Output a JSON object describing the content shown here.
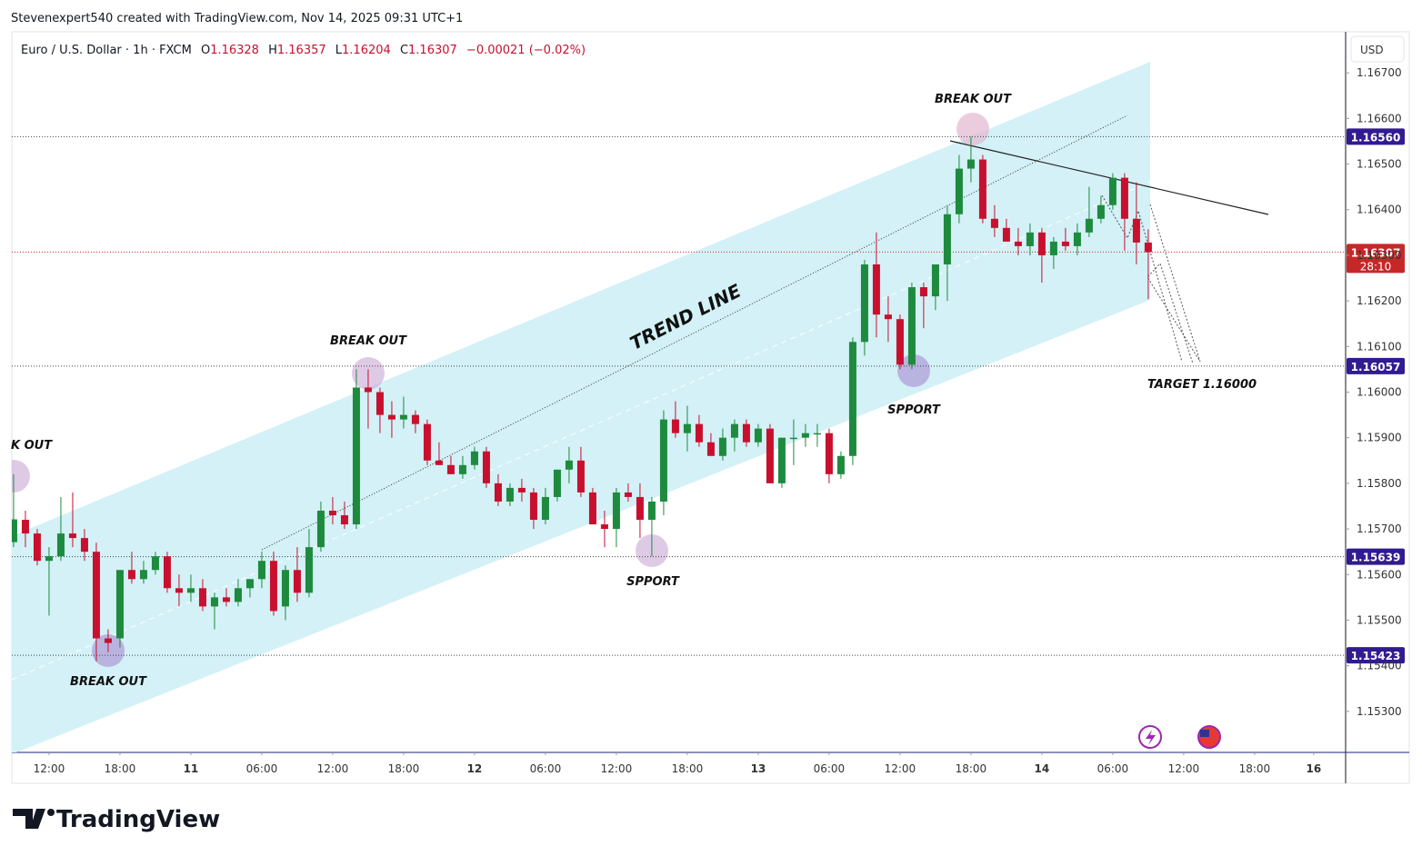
{
  "attribution": "Stevenexpert540 created with TradingView.com, Nov 14, 2025 09:31 UTC+1",
  "legend": {
    "symbol": "Euro / U.S. Dollar · 1h · FXCM",
    "ohlc": [
      {
        "key": "O",
        "value": "1.16328"
      },
      {
        "key": "H",
        "value": "1.16357"
      },
      {
        "key": "L",
        "value": "1.16204"
      },
      {
        "key": "C",
        "value": "1.16307"
      }
    ],
    "change": "−0.00021 (−0.02%)"
  },
  "currency": "USD",
  "logo": "TradingView",
  "chart_data": {
    "type": "candlestick",
    "up_color": "#1e8a3e",
    "down_color": "#c8102e",
    "open": [
      1.15671,
      1.1572,
      1.1569,
      1.1563,
      1.1564,
      1.1569,
      1.1568,
      1.1565,
      1.1546,
      1.1546,
      1.1561,
      1.1559,
      1.1561,
      1.1564,
      1.1557,
      1.1556,
      1.1557,
      1.1553,
      1.1555,
      1.1554,
      1.1557,
      1.1559,
      1.1563,
      1.1553,
      1.1561,
      1.1556,
      1.1566,
      1.1574,
      1.1573,
      1.1571,
      1.1601,
      1.16,
      1.1595,
      1.1594,
      1.1595,
      1.1593,
      1.1585,
      1.1584,
      1.1582,
      1.1584,
      1.1587,
      1.158,
      1.1576,
      1.1579,
      1.1578,
      1.1572,
      1.1577,
      1.1583,
      1.1585,
      1.1578,
      1.1571,
      1.157,
      1.1578,
      1.1577,
      1.1572,
      1.1576,
      1.1594,
      1.1591,
      1.1593,
      1.1589,
      1.1586,
      1.159,
      1.1593,
      1.1589,
      1.1592,
      1.158,
      1.159,
      1.159,
      1.1591,
      1.1591,
      1.1582,
      1.1586,
      1.1611,
      1.1628,
      1.1617,
      1.1616,
      1.1606,
      1.1623,
      1.1621,
      1.1628,
      1.1639,
      1.1649,
      1.1651,
      1.1638,
      1.1636,
      1.1633,
      1.1632,
      1.1635,
      1.163,
      1.1633,
      1.1632,
      1.1635,
      1.1638,
      1.1641,
      1.1647,
      1.1638,
      1.16328
    ],
    "high": [
      1.1582,
      1.1574,
      1.157,
      1.1566,
      1.1577,
      1.1578,
      1.157,
      1.1567,
      1.1548,
      1.1561,
      1.1565,
      1.1563,
      1.1565,
      1.1565,
      1.156,
      1.156,
      1.1559,
      1.1556,
      1.1557,
      1.1559,
      1.1559,
      1.1565,
      1.1565,
      1.1562,
      1.1566,
      1.157,
      1.1576,
      1.1577,
      1.1576,
      1.1605,
      1.1605,
      1.1601,
      1.1598,
      1.1599,
      1.1596,
      1.1594,
      1.1589,
      1.1586,
      1.1586,
      1.1588,
      1.1588,
      1.1582,
      1.158,
      1.1581,
      1.1579,
      1.1579,
      1.1583,
      1.1588,
      1.1588,
      1.1579,
      1.1574,
      1.1579,
      1.158,
      1.158,
      1.1577,
      1.1596,
      1.1598,
      1.1597,
      1.1595,
      1.1591,
      1.1592,
      1.1594,
      1.1594,
      1.1593,
      1.1593,
      1.159,
      1.1594,
      1.1593,
      1.1593,
      1.1592,
      1.1587,
      1.1612,
      1.1629,
      1.1635,
      1.1621,
      1.1617,
      1.1624,
      1.1624,
      1.1628,
      1.1641,
      1.1652,
      1.1656,
      1.1652,
      1.1641,
      1.1638,
      1.1636,
      1.1637,
      1.1636,
      1.1634,
      1.1636,
      1.1637,
      1.1645,
      1.1643,
      1.1648,
      1.1648,
      1.1646,
      1.16357
    ],
    "low": [
      1.1566,
      1.1566,
      1.1562,
      1.1551,
      1.1563,
      1.1566,
      1.1563,
      1.1541,
      1.1543,
      1.1544,
      1.1558,
      1.1558,
      1.156,
      1.1556,
      1.1553,
      1.1554,
      1.1552,
      1.1548,
      1.1553,
      1.1553,
      1.1555,
      1.1557,
      1.1551,
      1.155,
      1.1554,
      1.1555,
      1.1565,
      1.1571,
      1.157,
      1.157,
      1.1592,
      1.1591,
      1.159,
      1.1592,
      1.1591,
      1.1584,
      1.1584,
      1.1582,
      1.1581,
      1.1583,
      1.1579,
      1.1575,
      1.1575,
      1.1576,
      1.157,
      1.1571,
      1.1576,
      1.158,
      1.1577,
      1.1571,
      1.1566,
      1.1566,
      1.1576,
      1.1568,
      1.1564,
      1.1573,
      1.159,
      1.1587,
      1.1588,
      1.1586,
      1.1585,
      1.1587,
      1.1588,
      1.1588,
      1.158,
      1.1579,
      1.1584,
      1.1588,
      1.1588,
      1.158,
      1.1581,
      1.1584,
      1.1608,
      1.1612,
      1.1611,
      1.1605,
      1.1605,
      1.1614,
      1.1618,
      1.162,
      1.1637,
      1.1646,
      1.1637,
      1.1634,
      1.1633,
      1.163,
      1.163,
      1.1624,
      1.1627,
      1.1631,
      1.163,
      1.1634,
      1.1637,
      1.164,
      1.1631,
      1.1628,
      1.16204
    ],
    "close": [
      1.15721,
      1.1569,
      1.1563,
      1.1564,
      1.1569,
      1.1568,
      1.1565,
      1.1546,
      1.1545,
      1.1561,
      1.1559,
      1.1561,
      1.1564,
      1.1557,
      1.1556,
      1.1557,
      1.1553,
      1.1555,
      1.1554,
      1.1557,
      1.1559,
      1.1563,
      1.1552,
      1.1561,
      1.1556,
      1.1566,
      1.1574,
      1.1573,
      1.1571,
      1.1601,
      1.16,
      1.1595,
      1.1594,
      1.1595,
      1.1593,
      1.1585,
      1.1584,
      1.1582,
      1.1584,
      1.1587,
      1.158,
      1.1576,
      1.1579,
      1.1578,
      1.1572,
      1.1577,
      1.1583,
      1.1585,
      1.1578,
      1.1571,
      1.157,
      1.1578,
      1.1577,
      1.1572,
      1.1576,
      1.1594,
      1.1591,
      1.1593,
      1.1589,
      1.1586,
      1.159,
      1.1593,
      1.1589,
      1.1592,
      1.158,
      1.159,
      1.159,
      1.1591,
      1.1591,
      1.1582,
      1.1586,
      1.1611,
      1.1628,
      1.1617,
      1.1616,
      1.1606,
      1.1623,
      1.1621,
      1.1628,
      1.1639,
      1.1649,
      1.1651,
      1.1638,
      1.1636,
      1.1633,
      1.1632,
      1.1635,
      1.163,
      1.1633,
      1.1632,
      1.1635,
      1.1638,
      1.1641,
      1.1647,
      1.1638,
      1.16328,
      1.16307
    ],
    "xlim": [
      -0.15,
      112.7
    ],
    "xticks": [
      {
        "value": 3,
        "label": "12:00"
      },
      {
        "value": 9,
        "label": "18:00"
      },
      {
        "value": 15,
        "label": "11"
      },
      {
        "value": 21,
        "label": "06:00"
      },
      {
        "value": 27,
        "label": "12:00"
      },
      {
        "value": 33,
        "label": "18:00"
      },
      {
        "value": 39,
        "label": "12"
      },
      {
        "value": 45,
        "label": "06:00"
      },
      {
        "value": 51,
        "label": "12:00"
      },
      {
        "value": 57,
        "label": "18:00"
      },
      {
        "value": 63,
        "label": "13"
      },
      {
        "value": 69,
        "label": "06:00"
      },
      {
        "value": 75,
        "label": "12:00"
      },
      {
        "value": 81,
        "label": "18:00"
      },
      {
        "value": 87,
        "label": "14"
      },
      {
        "value": 93,
        "label": "06:00"
      },
      {
        "value": 99,
        "label": "12:00"
      },
      {
        "value": 105,
        "label": "18:00"
      },
      {
        "value": 110,
        "label": "16"
      }
    ],
    "ylim": [
      1.1521,
      1.1679
    ],
    "yticks": [
      {
        "value": 1.153,
        "label": "1.15300"
      },
      {
        "value": 1.154,
        "label": "1.15400"
      },
      {
        "value": 1.155,
        "label": "1.15500"
      },
      {
        "value": 1.156,
        "label": "1.15600"
      },
      {
        "value": 1.157,
        "label": "1.15700"
      },
      {
        "value": 1.158,
        "label": "1.15800"
      },
      {
        "value": 1.159,
        "label": "1.15900"
      },
      {
        "value": 1.16,
        "label": "1.16000"
      },
      {
        "value": 1.161,
        "label": "1.16100"
      },
      {
        "value": 1.162,
        "label": "1.16200"
      },
      {
        "value": 1.163,
        "label": "1.16300"
      },
      {
        "value": 1.164,
        "label": "1.16400"
      },
      {
        "value": 1.165,
        "label": "1.16500"
      },
      {
        "value": 1.166,
        "label": "1.16600"
      },
      {
        "value": 1.167,
        "label": "1.16700"
      }
    ],
    "grid": false,
    "levels": [
      {
        "value": 1.1656,
        "label": "1.16560",
        "color": "#311b92"
      },
      {
        "value": 1.16307,
        "label": "1.16307",
        "color": "#c62828",
        "countdown": "28:10"
      },
      {
        "value": 1.16057,
        "label": "1.16057",
        "color": "#311b92"
      },
      {
        "value": 1.15639,
        "label": "1.15639",
        "color": "#311b92"
      },
      {
        "value": 1.15423,
        "label": "1.15423",
        "color": "#311b92"
      }
    ],
    "annotations": [
      "K OUT",
      "BREAK OUT",
      "BREAK OUT",
      "SPPORT",
      "TREND LINE",
      "SPPORT",
      "BREAK OUT",
      "TARGET 1.16000"
    ]
  }
}
